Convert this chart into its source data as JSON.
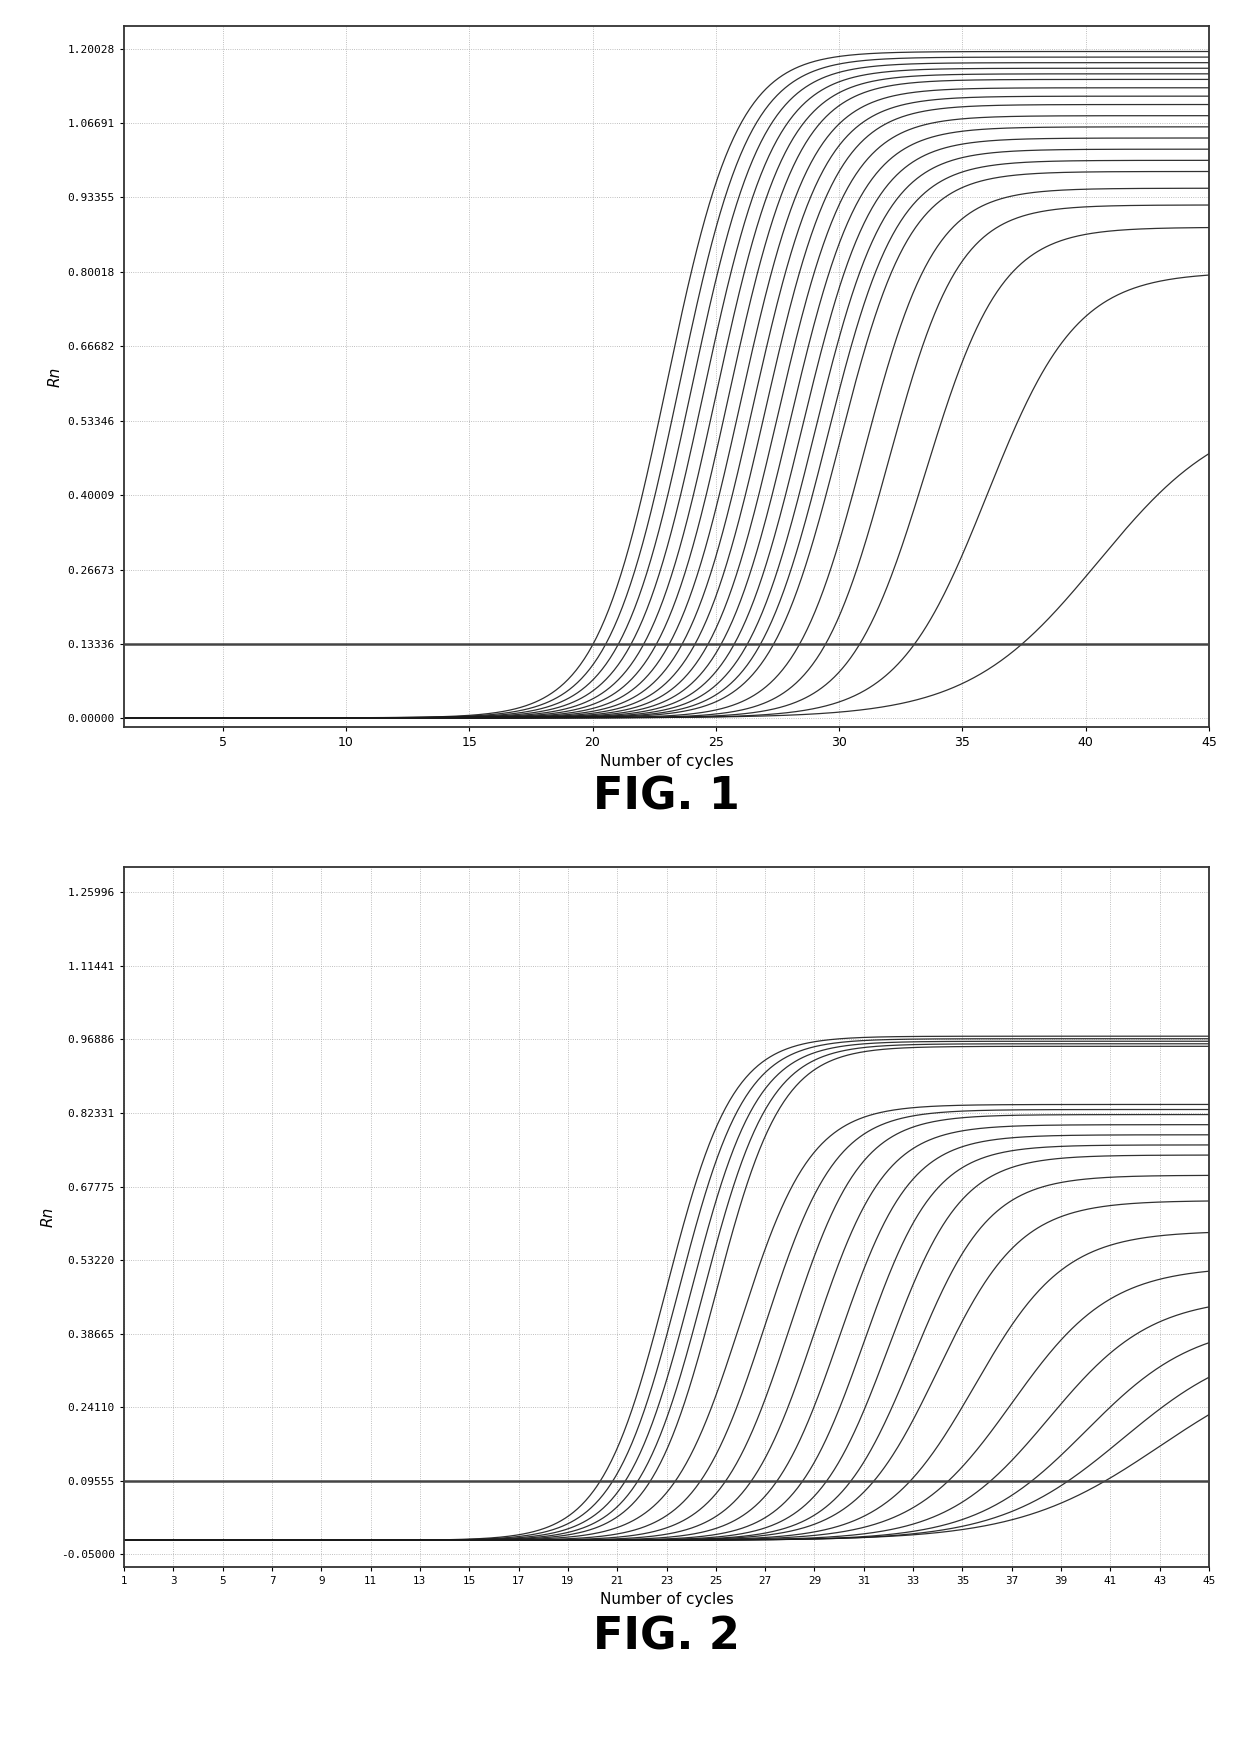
{
  "fig1": {
    "title": "FIG. 1",
    "xlabel": "Number of cycles",
    "ylabel": "Rn",
    "yticks": [
      0.0,
      0.13336,
      0.26673,
      0.40009,
      0.53346,
      0.66682,
      0.80018,
      0.93355,
      1.06691,
      1.20028
    ],
    "xticks": [
      5,
      10,
      15,
      20,
      25,
      30,
      35,
      40,
      45
    ],
    "xlim": [
      1,
      45
    ],
    "ylim": [
      -0.015,
      1.24
    ],
    "threshold": 0.13336,
    "midpoints": [
      23.0,
      23.5,
      24.0,
      24.5,
      25.0,
      25.5,
      26.0,
      26.5,
      27.0,
      27.5,
      28.0,
      28.5,
      29.0,
      29.5,
      30.0,
      31.0,
      32.0,
      33.5,
      36.0,
      40.5
    ],
    "plateaus": [
      1.195,
      1.185,
      1.175,
      1.165,
      1.155,
      1.145,
      1.13,
      1.115,
      1.1,
      1.08,
      1.06,
      1.04,
      1.02,
      1.0,
      0.98,
      0.95,
      0.92,
      0.88,
      0.8,
      0.56
    ],
    "steepness": [
      0.7,
      0.7,
      0.7,
      0.7,
      0.7,
      0.7,
      0.7,
      0.7,
      0.7,
      0.7,
      0.7,
      0.7,
      0.7,
      0.7,
      0.7,
      0.7,
      0.7,
      0.65,
      0.55,
      0.38
    ],
    "bg": [
      0.001,
      0.001,
      0.001,
      0.001,
      0.001,
      0.001,
      0.001,
      0.001,
      0.001,
      0.001,
      0.001,
      0.001,
      0.001,
      0.001,
      0.001,
      0.001,
      0.001,
      0.001,
      0.001,
      0.001
    ]
  },
  "fig2": {
    "title": "FIG. 2",
    "xlabel": "Number of cycles",
    "ylabel": "Rn",
    "yticks": [
      -0.05,
      0.09555,
      0.2411,
      0.38665,
      0.5322,
      0.67775,
      0.82331,
      0.96886,
      1.11441,
      1.25996
    ],
    "xticks": [
      1,
      3,
      5,
      7,
      9,
      11,
      13,
      15,
      17,
      19,
      21,
      23,
      25,
      27,
      29,
      31,
      33,
      35,
      37,
      39,
      41,
      43,
      45
    ],
    "xlim": [
      1,
      45
    ],
    "ylim": [
      -0.075,
      1.31
    ],
    "threshold": 0.09555,
    "midpoints": [
      23.0,
      23.5,
      24.0,
      24.5,
      25.0,
      26.0,
      27.0,
      28.0,
      29.0,
      30.0,
      31.0,
      32.0,
      33.0,
      34.0,
      35.5,
      37.0,
      38.5,
      40.0,
      41.5,
      43.0
    ],
    "plateaus": [
      0.975,
      0.97,
      0.965,
      0.96,
      0.955,
      0.84,
      0.83,
      0.82,
      0.8,
      0.78,
      0.76,
      0.74,
      0.7,
      0.65,
      0.59,
      0.52,
      0.46,
      0.41,
      0.38,
      0.35
    ],
    "steepness": [
      0.75,
      0.75,
      0.75,
      0.75,
      0.75,
      0.7,
      0.7,
      0.7,
      0.7,
      0.7,
      0.7,
      0.68,
      0.65,
      0.6,
      0.55,
      0.5,
      0.48,
      0.45,
      0.4,
      0.35
    ],
    "bg": [
      -0.022,
      -0.022,
      -0.022,
      -0.022,
      -0.022,
      -0.022,
      -0.022,
      -0.022,
      -0.022,
      -0.022,
      -0.022,
      -0.022,
      -0.022,
      -0.022,
      -0.022,
      -0.022,
      -0.022,
      -0.022,
      -0.022,
      -0.022
    ]
  },
  "line_color": "#1a1a1a",
  "threshold_color": "#444444",
  "grid_color": "#aaaaaa",
  "bg_color": "#ffffff",
  "plot_bg_color": "#ffffff"
}
